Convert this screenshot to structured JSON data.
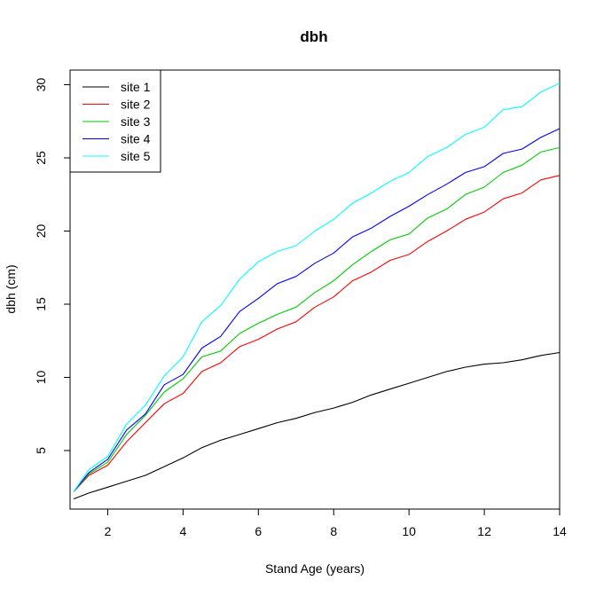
{
  "chart_data": {
    "type": "line",
    "title": "dbh",
    "xlabel": "Stand Age (years)",
    "ylabel": "dbh (cm)",
    "xlim": [
      1,
      14
    ],
    "ylim": [
      1,
      31
    ],
    "x_ticks": [
      "2",
      "4",
      "6",
      "8",
      "10",
      "12",
      "14"
    ],
    "y_ticks": [
      "5",
      "10",
      "15",
      "20",
      "25",
      "30"
    ],
    "legend_position": "top-left",
    "x": [
      1.1,
      1.5,
      2.0,
      2.5,
      3.0,
      3.5,
      4.0,
      4.5,
      5.0,
      5.5,
      6.0,
      6.5,
      7.0,
      7.5,
      8.0,
      8.5,
      9.0,
      9.5,
      10.0,
      10.5,
      11.0,
      11.5,
      12.0,
      12.5,
      13.0,
      13.5,
      14.0
    ],
    "series": [
      {
        "name": "site 1",
        "color": "#000000",
        "values": [
          1.7,
          2.1,
          2.5,
          2.9,
          3.3,
          3.9,
          4.5,
          5.2,
          5.7,
          6.1,
          6.5,
          6.9,
          7.2,
          7.6,
          7.9,
          8.3,
          8.8,
          9.2,
          9.6,
          10.0,
          10.4,
          10.7,
          10.9,
          11.0,
          11.2,
          11.5,
          11.7
        ]
      },
      {
        "name": "site 2",
        "color": "#ff0000",
        "values": [
          2.2,
          3.3,
          4.0,
          5.6,
          6.9,
          8.2,
          8.9,
          10.4,
          11.0,
          12.1,
          12.6,
          13.3,
          13.8,
          14.8,
          15.5,
          16.6,
          17.2,
          18.0,
          18.4,
          19.3,
          20.0,
          20.8,
          21.3,
          22.2,
          22.6,
          23.5,
          23.8
        ]
      },
      {
        "name": "site 3",
        "color": "#00cd00",
        "values": [
          2.2,
          3.4,
          4.2,
          6.1,
          7.4,
          9.0,
          9.9,
          11.4,
          11.8,
          13.0,
          13.7,
          14.3,
          14.8,
          15.8,
          16.6,
          17.7,
          18.6,
          19.4,
          19.8,
          20.9,
          21.5,
          22.5,
          23.0,
          24.0,
          24.5,
          25.4,
          25.7
        ]
      },
      {
        "name": "site 4",
        "color": "#0000ff",
        "values": [
          2.2,
          3.5,
          4.4,
          6.4,
          7.5,
          9.5,
          10.2,
          12.0,
          12.8,
          14.5,
          15.4,
          16.4,
          16.9,
          17.8,
          18.5,
          19.6,
          20.2,
          21.0,
          21.7,
          22.5,
          23.2,
          24.0,
          24.4,
          25.3,
          25.6,
          26.4,
          27.0
        ]
      },
      {
        "name": "site 5",
        "color": "#00ffff",
        "values": [
          2.2,
          3.7,
          4.6,
          6.8,
          8.1,
          10.1,
          11.4,
          13.8,
          14.9,
          16.7,
          17.9,
          18.6,
          19.0,
          20.0,
          20.8,
          21.9,
          22.6,
          23.4,
          24.0,
          25.1,
          25.7,
          26.6,
          27.1,
          28.3,
          28.5,
          29.5,
          30.1
        ]
      }
    ]
  }
}
